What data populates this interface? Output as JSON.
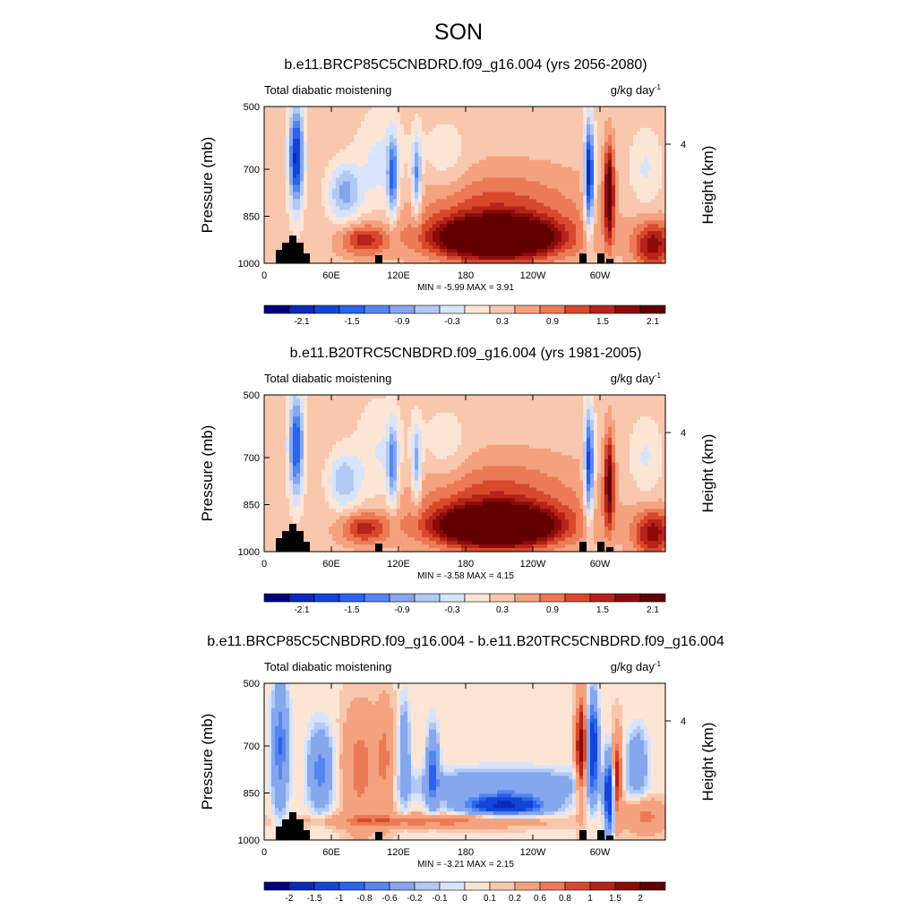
{
  "figure": {
    "title": "SON"
  },
  "colors": {
    "divergent": [
      "#00007f",
      "#0a2ab8",
      "#1245d8",
      "#2a64ee",
      "#5585ef",
      "#86a6ee",
      "#b2c9f3",
      "#d7e4fb",
      "#fde5d6",
      "#f9c7ad",
      "#f4a27f",
      "#ec7a55",
      "#d8492c",
      "#b6231a",
      "#8c0b0b",
      "#620000"
    ],
    "land": "#000000"
  },
  "chart_data": [
    {
      "type": "heatmap",
      "title": "b.e11.BRCP85C5CNBDRD.f09_g16.004 (yrs 2056-2080)",
      "left_label": "Total diabatic moistening",
      "units": "g/kg day",
      "units_exp": "-1",
      "ylabel": "Pressure (mb)",
      "ylabel_right": "Height (km)",
      "xticks": [
        "0",
        "60E",
        "120E",
        "180",
        "120W",
        "60W"
      ],
      "yticks": [
        "500",
        "700",
        "850",
        "1000"
      ],
      "yticks_right": [
        "4"
      ],
      "stats": "MIN =  -5.99  MAX =   3.91",
      "min": -5.99,
      "max": 3.91,
      "colorbar": {
        "levels": [
          "-2.1",
          "-1.5",
          "-0.9",
          "-0.3",
          "0.3",
          "0.9",
          "1.5",
          "2.1"
        ],
        "label_every": 2
      }
    },
    {
      "type": "heatmap",
      "title": "b.e11.B20TRC5CNBDRD.f09_g16.004 (yrs 1981-2005)",
      "left_label": "Total diabatic moistening",
      "units": "g/kg day",
      "units_exp": "-1",
      "ylabel": "Pressure (mb)",
      "ylabel_right": "Height (km)",
      "xticks": [
        "0",
        "60E",
        "120E",
        "180",
        "120W",
        "60W"
      ],
      "yticks": [
        "500",
        "700",
        "850",
        "1000"
      ],
      "yticks_right": [
        "4"
      ],
      "stats": "MIN =  -3.58  MAX =   4.15",
      "min": -3.58,
      "max": 4.15,
      "colorbar": {
        "levels": [
          "-2.1",
          "-1.5",
          "-0.9",
          "-0.3",
          "0.3",
          "0.9",
          "1.5",
          "2.1"
        ],
        "label_every": 2
      }
    },
    {
      "type": "heatmap",
      "title": "b.e11.BRCP85C5CNBDRD.f09_g16.004 - b.e11.B20TRC5CNBDRD.f09_g16.004",
      "left_label": "Total diabatic moistening",
      "units": "g/kg day",
      "units_exp": "-1",
      "ylabel": "Pressure (mb)",
      "ylabel_right": "Height (km)",
      "xticks": [
        "0",
        "60E",
        "120E",
        "180",
        "120W",
        "60W"
      ],
      "yticks": [
        "500",
        "700",
        "850",
        "1000"
      ],
      "yticks_right": [
        "4"
      ],
      "stats": "MIN =  -3.21  MAX =   2.15",
      "min": -3.21,
      "max": 2.15,
      "colorbar": {
        "levels": [
          "-2",
          "-1.5",
          "-1",
          "-0.8",
          "-0.6",
          "-0.2",
          "-0.1",
          "0",
          "0.1",
          "0.2",
          "0.6",
          "0.8",
          "1",
          "1.5",
          "2"
        ],
        "label_every": 1
      }
    }
  ]
}
